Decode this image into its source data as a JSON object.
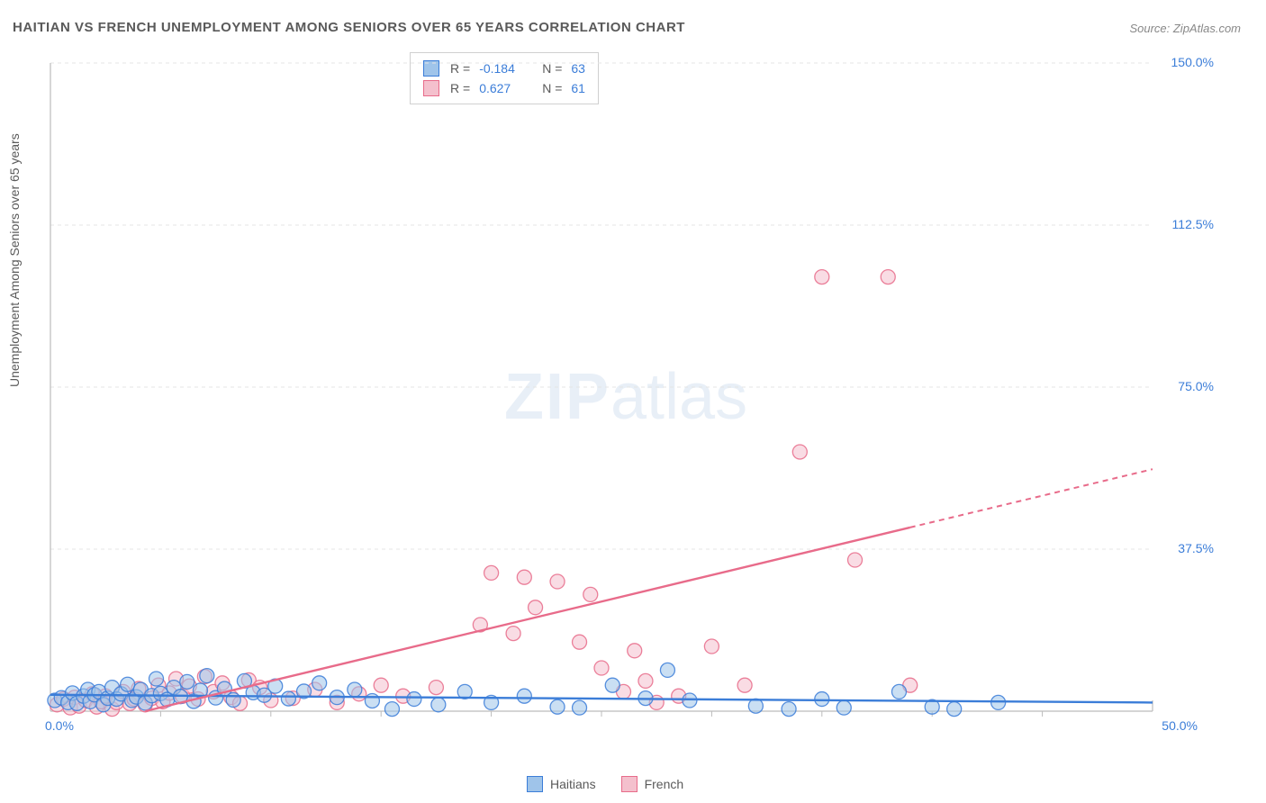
{
  "title": "HAITIAN VS FRENCH UNEMPLOYMENT AMONG SENIORS OVER 65 YEARS CORRELATION CHART",
  "source": "Source: ZipAtlas.com",
  "y_axis_label": "Unemployment Among Seniors over 65 years",
  "watermark": {
    "zip": "ZIP",
    "atlas": "atlas"
  },
  "chart": {
    "type": "scatter",
    "xlim": [
      0,
      50
    ],
    "ylim": [
      0,
      150
    ],
    "x_ticks": [
      0,
      50
    ],
    "x_tick_labels": [
      "0.0%",
      "50.0%"
    ],
    "y_ticks": [
      37.5,
      75.0,
      112.5,
      150.0
    ],
    "y_tick_labels": [
      "37.5%",
      "75.0%",
      "112.5%",
      "150.0%"
    ],
    "grid_color": "#e5e5e5",
    "axis_color": "#bcbcbc",
    "background_color": "#ffffff",
    "tick_label_color": "#3b7dd8",
    "marker_radius": 8,
    "marker_opacity": 0.55,
    "series": {
      "haitians": {
        "label": "Haitians",
        "fill_color": "#9fc4ea",
        "stroke_color": "#3b7dd8",
        "correlation_r": "-0.184",
        "correlation_n": "63",
        "regression": {
          "x1": 0,
          "y1": 3.8,
          "x2": 50,
          "y2": 2.0,
          "solid_to_x": 50
        },
        "points": [
          [
            0.2,
            2.5
          ],
          [
            0.5,
            3.1
          ],
          [
            0.8,
            2.0
          ],
          [
            1.0,
            4.2
          ],
          [
            1.2,
            1.8
          ],
          [
            1.5,
            3.5
          ],
          [
            1.7,
            5.0
          ],
          [
            1.8,
            2.2
          ],
          [
            2.0,
            3.8
          ],
          [
            2.2,
            4.5
          ],
          [
            2.4,
            1.5
          ],
          [
            2.6,
            3.0
          ],
          [
            2.8,
            5.5
          ],
          [
            3.0,
            2.8
          ],
          [
            3.2,
            4.0
          ],
          [
            3.5,
            6.2
          ],
          [
            3.7,
            2.5
          ],
          [
            3.9,
            3.3
          ],
          [
            4.1,
            5.0
          ],
          [
            4.3,
            1.9
          ],
          [
            4.6,
            3.6
          ],
          [
            4.8,
            7.5
          ],
          [
            5.0,
            4.1
          ],
          [
            5.3,
            2.7
          ],
          [
            5.6,
            5.5
          ],
          [
            5.9,
            3.4
          ],
          [
            6.2,
            6.8
          ],
          [
            6.5,
            2.3
          ],
          [
            6.8,
            4.8
          ],
          [
            7.1,
            8.2
          ],
          [
            7.5,
            3.1
          ],
          [
            7.9,
            5.2
          ],
          [
            8.3,
            2.6
          ],
          [
            8.8,
            7.0
          ],
          [
            9.2,
            4.3
          ],
          [
            9.7,
            3.7
          ],
          [
            10.2,
            5.8
          ],
          [
            10.8,
            2.9
          ],
          [
            11.5,
            4.6
          ],
          [
            12.2,
            6.5
          ],
          [
            13.0,
            3.2
          ],
          [
            13.8,
            5.0
          ],
          [
            14.6,
            2.4
          ],
          [
            15.5,
            0.5
          ],
          [
            16.5,
            2.8
          ],
          [
            17.6,
            1.5
          ],
          [
            18.8,
            4.5
          ],
          [
            20.0,
            2.0
          ],
          [
            21.5,
            3.5
          ],
          [
            23.0,
            1.0
          ],
          [
            24.0,
            0.8
          ],
          [
            25.5,
            6.0
          ],
          [
            27.0,
            3.0
          ],
          [
            28.0,
            9.5
          ],
          [
            29.0,
            2.5
          ],
          [
            32.0,
            1.2
          ],
          [
            33.5,
            0.5
          ],
          [
            35.0,
            2.8
          ],
          [
            36.0,
            0.8
          ],
          [
            38.5,
            4.5
          ],
          [
            40.0,
            1.0
          ],
          [
            41.0,
            0.5
          ],
          [
            43.0,
            2.0
          ]
        ]
      },
      "french": {
        "label": "French",
        "fill_color": "#f4c0cd",
        "stroke_color": "#e86b8a",
        "correlation_r": "0.627",
        "correlation_n": "61",
        "regression": {
          "x1": 4.3,
          "y1": 0,
          "x2": 50,
          "y2": 56,
          "solid_to_x": 39
        },
        "points": [
          [
            0.3,
            1.5
          ],
          [
            0.6,
            2.8
          ],
          [
            0.9,
            0.8
          ],
          [
            1.1,
            3.2
          ],
          [
            1.3,
            1.2
          ],
          [
            1.6,
            2.5
          ],
          [
            1.9,
            4.0
          ],
          [
            2.1,
            1.0
          ],
          [
            2.3,
            2.2
          ],
          [
            2.5,
            3.5
          ],
          [
            2.8,
            0.5
          ],
          [
            3.0,
            2.0
          ],
          [
            3.3,
            4.5
          ],
          [
            3.6,
            1.8
          ],
          [
            3.8,
            2.8
          ],
          [
            4.0,
            5.2
          ],
          [
            4.3,
            1.5
          ],
          [
            4.6,
            3.0
          ],
          [
            4.9,
            6.0
          ],
          [
            5.1,
            2.2
          ],
          [
            5.4,
            4.2
          ],
          [
            5.7,
            7.5
          ],
          [
            6.0,
            3.5
          ],
          [
            6.3,
            5.8
          ],
          [
            6.7,
            2.8
          ],
          [
            7.0,
            8.0
          ],
          [
            7.4,
            4.5
          ],
          [
            7.8,
            6.5
          ],
          [
            8.2,
            3.2
          ],
          [
            8.6,
            1.8
          ],
          [
            9.0,
            7.2
          ],
          [
            9.5,
            5.5
          ],
          [
            10.0,
            2.5
          ],
          [
            11.0,
            3.0
          ],
          [
            12.0,
            5.0
          ],
          [
            13.0,
            2.0
          ],
          [
            14.0,
            4.0
          ],
          [
            15.0,
            6.0
          ],
          [
            16.0,
            3.5
          ],
          [
            17.5,
            5.5
          ],
          [
            19.5,
            20.0
          ],
          [
            20.0,
            32.0
          ],
          [
            21.0,
            18.0
          ],
          [
            21.5,
            31.0
          ],
          [
            22.0,
            24.0
          ],
          [
            23.0,
            30.0
          ],
          [
            24.0,
            16.0
          ],
          [
            24.5,
            27.0
          ],
          [
            25.0,
            10.0
          ],
          [
            26.0,
            4.5
          ],
          [
            26.5,
            14.0
          ],
          [
            27.0,
            7.0
          ],
          [
            27.5,
            2.0
          ],
          [
            28.5,
            3.5
          ],
          [
            30.0,
            15.0
          ],
          [
            31.5,
            6.0
          ],
          [
            34.0,
            60.0
          ],
          [
            35.0,
            100.5
          ],
          [
            36.5,
            35.0
          ],
          [
            38.0,
            100.5
          ],
          [
            39.0,
            6.0
          ]
        ]
      }
    }
  }
}
